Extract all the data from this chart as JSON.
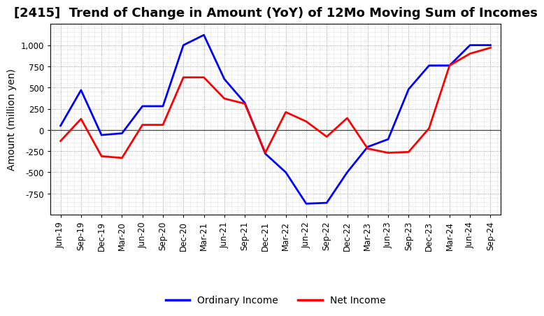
{
  "title": "[2415]  Trend of Change in Amount (YoY) of 12Mo Moving Sum of Incomes",
  "ylabel": "Amount (million yen)",
  "background_color": "#ffffff",
  "plot_background": "#ffffff",
  "x_labels": [
    "Jun-19",
    "Sep-19",
    "Dec-19",
    "Mar-20",
    "Jun-20",
    "Sep-20",
    "Dec-20",
    "Mar-21",
    "Jun-21",
    "Sep-21",
    "Dec-21",
    "Mar-22",
    "Jun-22",
    "Sep-22",
    "Dec-22",
    "Mar-23",
    "Jun-23",
    "Sep-23",
    "Dec-23",
    "Mar-24",
    "Jun-24",
    "Sep-24"
  ],
  "ordinary_income": [
    50,
    470,
    -60,
    -40,
    280,
    280,
    1000,
    1120,
    600,
    320,
    -280,
    -500,
    -870,
    -860,
    -500,
    -200,
    -110,
    480,
    760,
    760,
    1000,
    1000
  ],
  "net_income": [
    -130,
    130,
    -310,
    -330,
    60,
    60,
    620,
    620,
    370,
    310,
    -270,
    210,
    100,
    -80,
    140,
    -220,
    -270,
    -260,
    20,
    760,
    900,
    970
  ],
  "ordinary_income_color": "#0000ff",
  "net_income_color": "#ff0000",
  "line_width": 2.0,
  "ylim": [
    -1000,
    1250
  ],
  "yticks": [
    -750,
    -500,
    -250,
    0,
    250,
    500,
    750,
    1000
  ],
  "legend_labels": [
    "Ordinary Income",
    "Net Income"
  ],
  "title_fontsize": 13,
  "axis_fontsize": 10,
  "tick_fontsize": 8.5
}
